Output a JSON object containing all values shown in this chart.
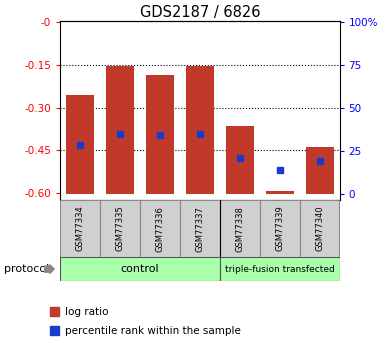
{
  "title": "GDS2187 / 6826",
  "samples": [
    "GSM77334",
    "GSM77335",
    "GSM77336",
    "GSM77337",
    "GSM77338",
    "GSM77339",
    "GSM77340"
  ],
  "log_ratio_top": [
    -0.255,
    -0.155,
    -0.185,
    -0.155,
    -0.365,
    -0.594,
    -0.44
  ],
  "log_ratio_bottom": [
    -0.605,
    -0.605,
    -0.605,
    -0.605,
    -0.605,
    -0.605,
    -0.605
  ],
  "percentile_rank_y": [
    -0.43,
    -0.392,
    -0.395,
    -0.392,
    -0.478,
    -0.518,
    -0.488
  ],
  "bar_color": "#c0392b",
  "blue_color": "#1a3acc",
  "ylim": [
    -0.625,
    0.005
  ],
  "yticks": [
    0,
    -0.15,
    -0.3,
    -0.45,
    -0.6
  ],
  "ytick_labels_left": [
    "-0",
    "-0.15",
    "-0.30",
    "-0.45",
    "-0.60"
  ],
  "pct_vals": [
    100,
    75,
    50,
    25,
    0
  ],
  "pct_y": [
    0.0,
    -0.15075,
    -0.3015,
    -0.45225,
    -0.603
  ],
  "ytick_labels_right": [
    "100%",
    "75",
    "50",
    "25",
    "0"
  ],
  "group_control_label": "control",
  "group_triple_label": "triple-fusion transfected",
  "n_control": 4,
  "protocol_label": "protocol",
  "legend_bar": "log ratio",
  "legend_dot": "percentile rank within the sample"
}
